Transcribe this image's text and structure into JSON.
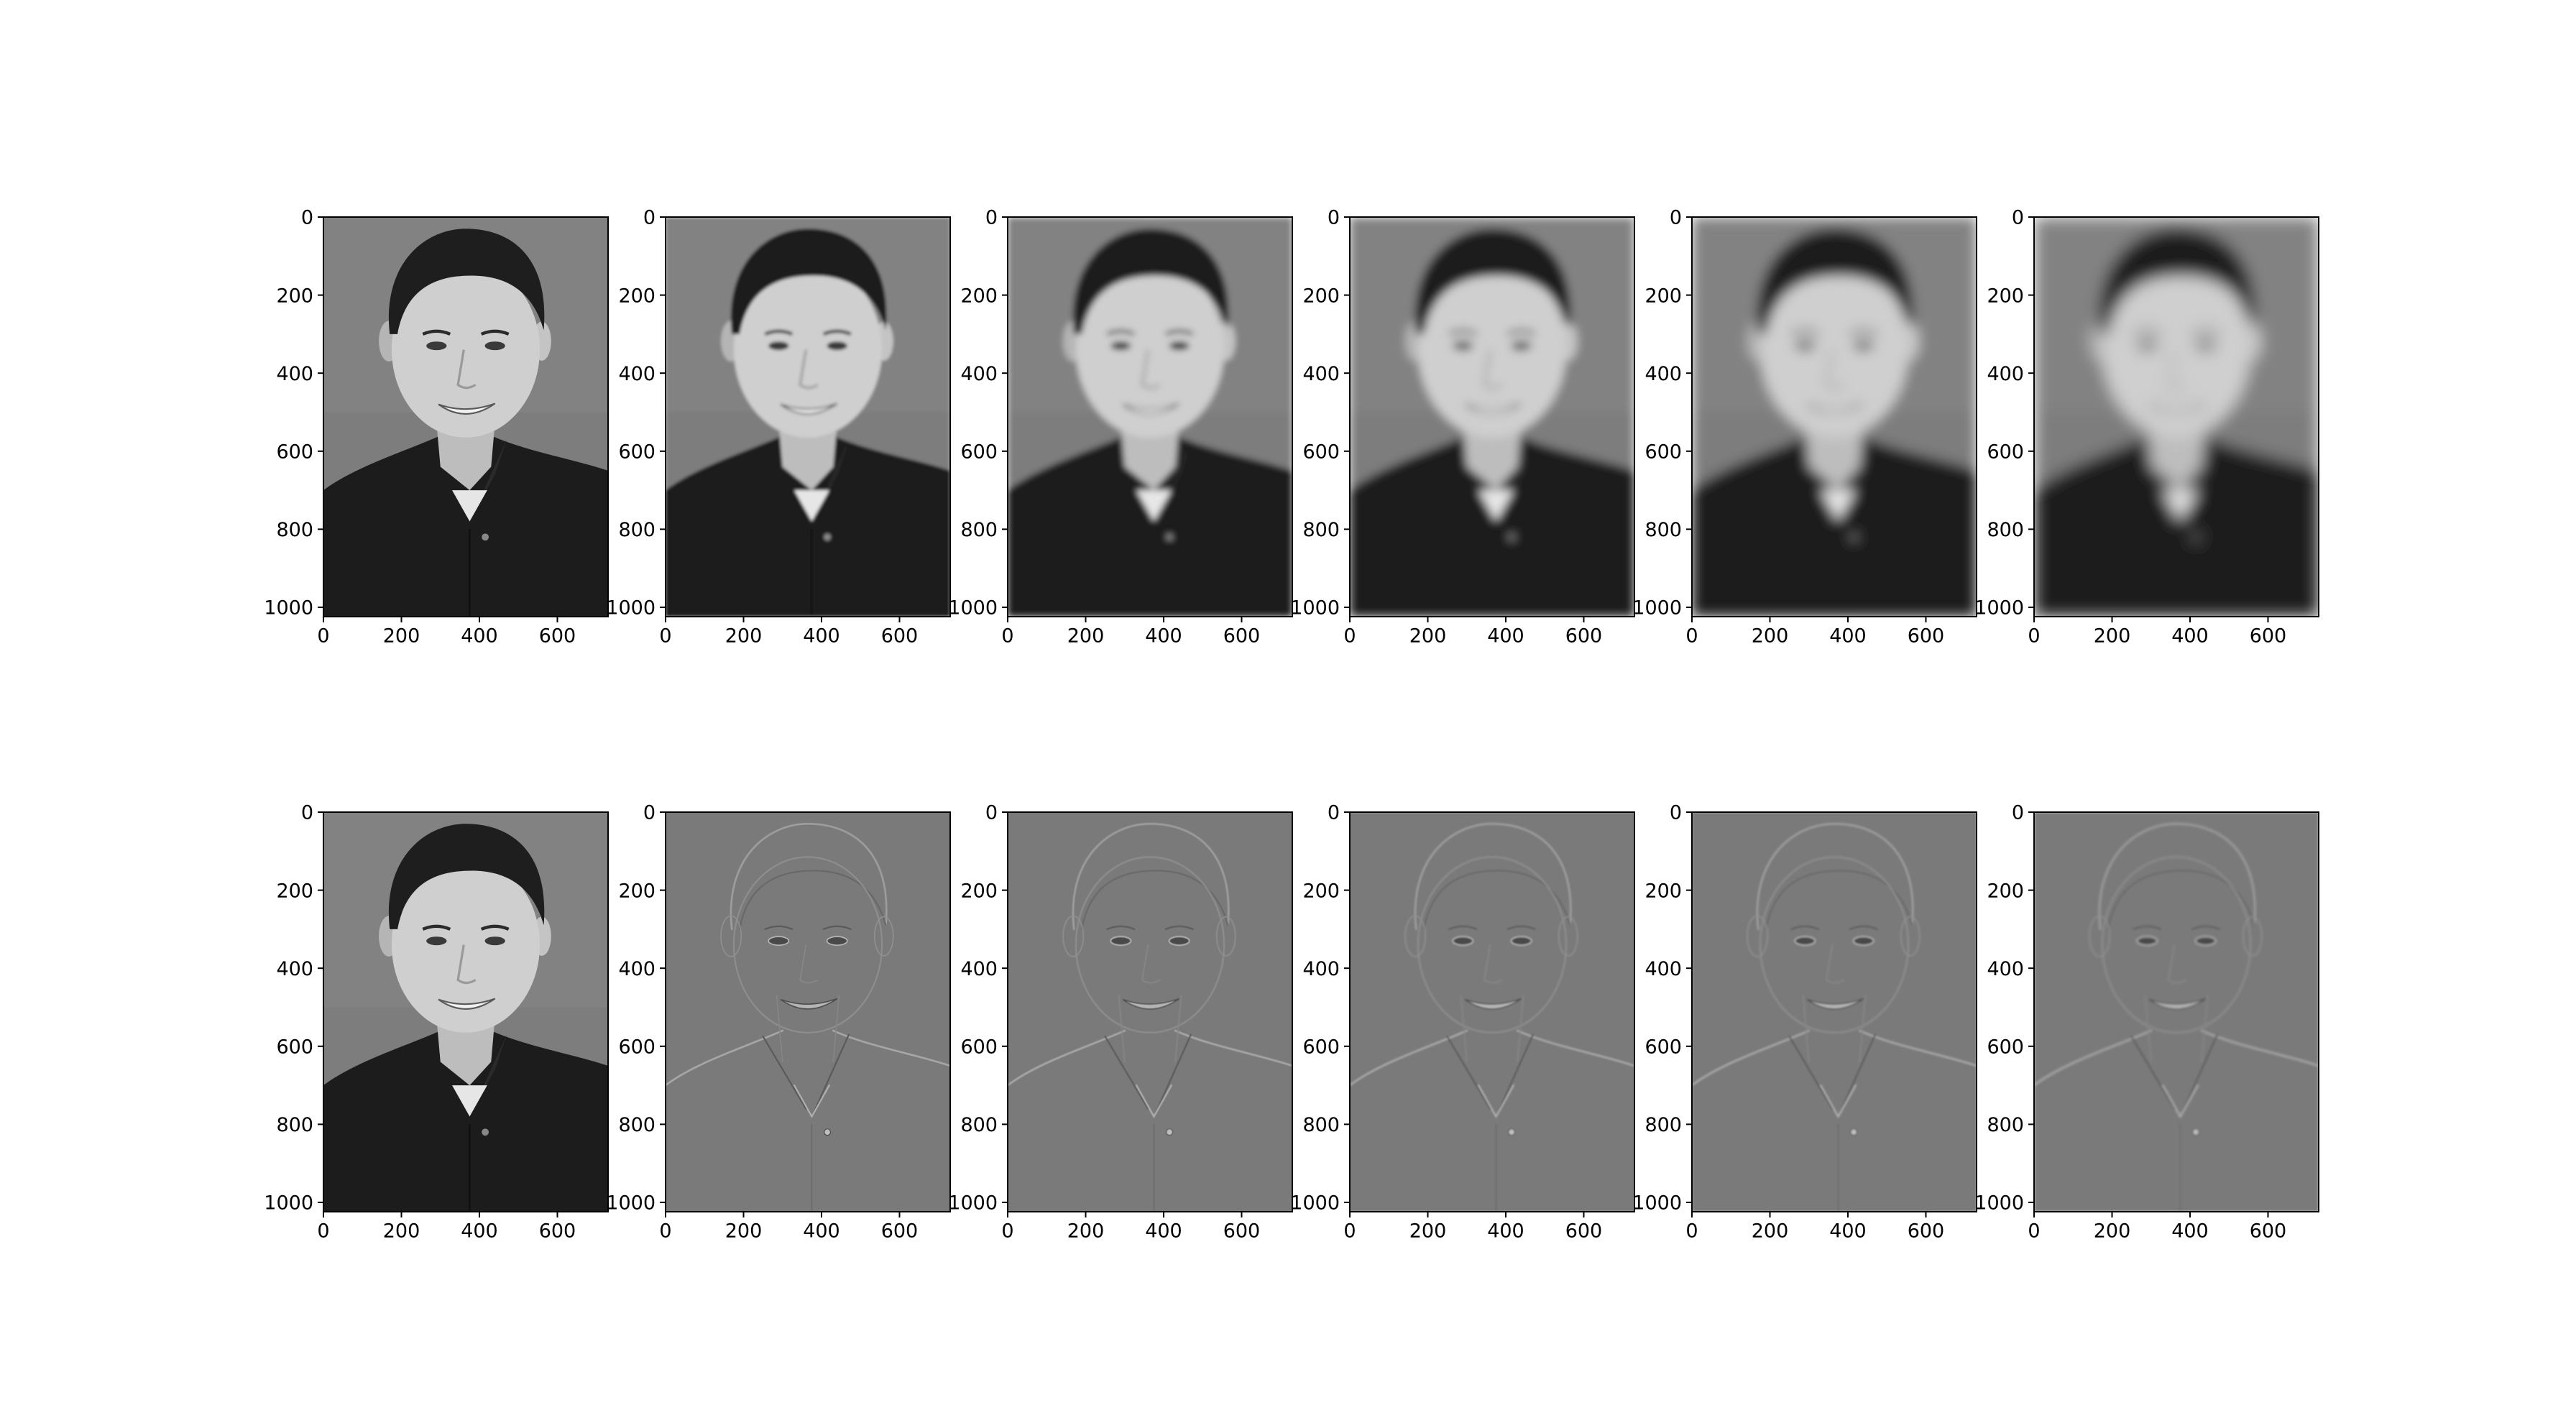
{
  "figure": {
    "grid": {
      "rows": 2,
      "cols": 6
    },
    "panels": [
      {
        "row": 0,
        "col": 0,
        "content": "original image",
        "style": "photo",
        "blur_level": 0
      },
      {
        "row": 0,
        "col": 1,
        "content": "gaussian stack level 1",
        "style": "photo",
        "blur_level": 1
      },
      {
        "row": 0,
        "col": 2,
        "content": "gaussian stack level 2",
        "style": "photo",
        "blur_level": 2
      },
      {
        "row": 0,
        "col": 3,
        "content": "gaussian stack level 3",
        "style": "photo",
        "blur_level": 3
      },
      {
        "row": 0,
        "col": 4,
        "content": "gaussian stack level 4",
        "style": "photo",
        "blur_level": 4
      },
      {
        "row": 0,
        "col": 5,
        "content": "gaussian stack level 5",
        "style": "photo",
        "blur_level": 5
      },
      {
        "row": 1,
        "col": 0,
        "content": "original image",
        "style": "photo",
        "blur_level": 0
      },
      {
        "row": 1,
        "col": 1,
        "content": "laplacian stack level 1",
        "style": "edges",
        "blur_level": 1
      },
      {
        "row": 1,
        "col": 2,
        "content": "laplacian stack level 2",
        "style": "edges",
        "blur_level": 2
      },
      {
        "row": 1,
        "col": 3,
        "content": "laplacian stack level 3",
        "style": "edges",
        "blur_level": 3
      },
      {
        "row": 1,
        "col": 4,
        "content": "laplacian stack level 4",
        "style": "edges",
        "blur_level": 4
      },
      {
        "row": 1,
        "col": 5,
        "content": "laplacian stack level 5",
        "style": "edges",
        "blur_level": 5
      }
    ],
    "axes": {
      "x_ticks": [
        "0",
        "200",
        "400",
        "600"
      ],
      "y_ticks": [
        "0",
        "200",
        "400",
        "600",
        "800",
        "1000"
      ],
      "x_range": [
        0,
        730
      ],
      "y_range": [
        0,
        1024
      ]
    },
    "colors": {
      "background": "#ffffff",
      "axis": "#000000",
      "photo_bg": "#808080",
      "edge_bg": "#7a7a7a"
    }
  }
}
